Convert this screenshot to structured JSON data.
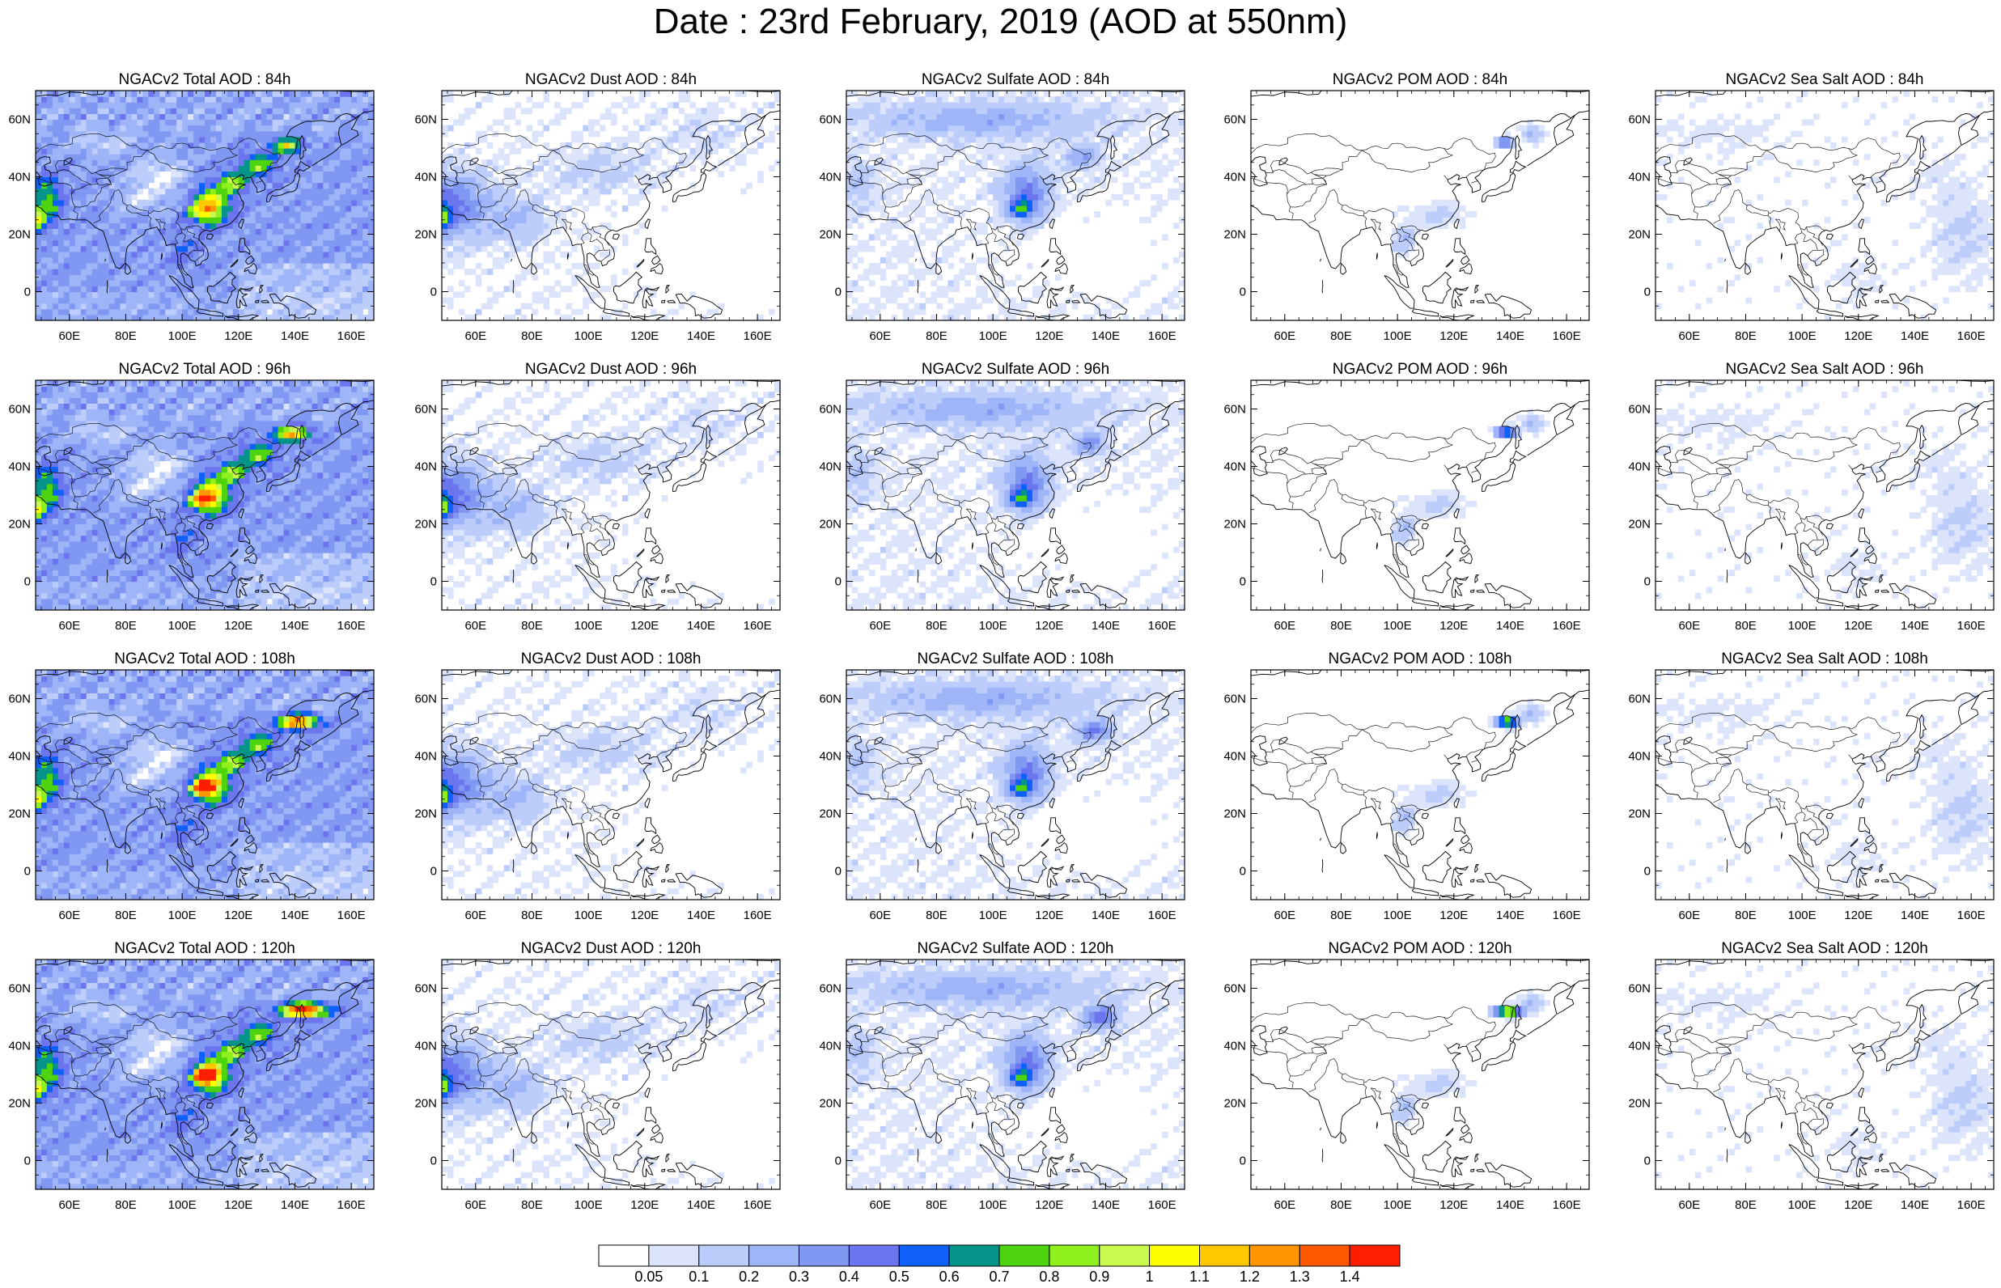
{
  "title": "Date : 23rd February, 2019 (AOD at 550nm)",
  "panels": [
    {
      "title": "NGACv2 Total AOD : 84h",
      "species": "total",
      "hour": 84
    },
    {
      "title": "NGACv2 Dust AOD : 84h",
      "species": "dust",
      "hour": 84
    },
    {
      "title": "NGACv2 Sulfate AOD : 84h",
      "species": "sulfate",
      "hour": 84
    },
    {
      "title": "NGACv2 POM AOD : 84h",
      "species": "pom",
      "hour": 84
    },
    {
      "title": "NGACv2 Sea Salt AOD : 84h",
      "species": "seasalt",
      "hour": 84
    },
    {
      "title": "NGACv2 Total AOD : 96h",
      "species": "total",
      "hour": 96
    },
    {
      "title": "NGACv2 Dust AOD : 96h",
      "species": "dust",
      "hour": 96
    },
    {
      "title": "NGACv2 Sulfate AOD : 96h",
      "species": "sulfate",
      "hour": 96
    },
    {
      "title": "NGACv2 POM AOD : 96h",
      "species": "pom",
      "hour": 96
    },
    {
      "title": "NGACv2 Sea Salt AOD : 96h",
      "species": "seasalt",
      "hour": 96
    },
    {
      "title": "NGACv2 Total AOD : 108h",
      "species": "total",
      "hour": 108
    },
    {
      "title": "NGACv2 Dust AOD : 108h",
      "species": "dust",
      "hour": 108
    },
    {
      "title": "NGACv2 Sulfate AOD : 108h",
      "species": "sulfate",
      "hour": 108
    },
    {
      "title": "NGACv2 POM AOD : 108h",
      "species": "pom",
      "hour": 108
    },
    {
      "title": "NGACv2 Sea Salt AOD : 108h",
      "species": "seasalt",
      "hour": 108
    },
    {
      "title": "NGACv2 Total AOD : 120h",
      "species": "total",
      "hour": 120
    },
    {
      "title": "NGACv2 Dust AOD : 120h",
      "species": "dust",
      "hour": 120
    },
    {
      "title": "NGACv2 Sulfate AOD : 120h",
      "species": "sulfate",
      "hour": 120
    },
    {
      "title": "NGACv2 POM AOD : 120h",
      "species": "pom",
      "hour": 120
    },
    {
      "title": "NGACv2 Sea Salt  AOD : 120h",
      "species": "seasalt",
      "hour": 120
    }
  ],
  "map": {
    "lon_range": [
      48,
      168
    ],
    "lat_range": [
      -10,
      70
    ],
    "lon_ticks": [
      "60E",
      "80E",
      "100E",
      "120E",
      "140E",
      "160E"
    ],
    "lat_ticks": [
      "60N",
      "40N",
      "20N",
      "0"
    ]
  },
  "colorbar": {
    "levels": [
      "0.05",
      "0.1",
      "0.2",
      "0.3",
      "0.4",
      "0.5",
      "0.6",
      "0.7",
      "0.8",
      "0.9",
      "1",
      "1.1",
      "1.2",
      "1.3",
      "1.4"
    ],
    "colors": [
      "#ffffff",
      "#dce4fc",
      "#bccdfb",
      "#9eb5f8",
      "#8198f3",
      "#6b76ee",
      "#0f5ffa",
      "#05948a",
      "#4ed30f",
      "#8ef01d",
      "#c9f84e",
      "#ffff00",
      "#ffc800",
      "#ff9600",
      "#ff5a00",
      "#ff1e00"
    ]
  }
}
